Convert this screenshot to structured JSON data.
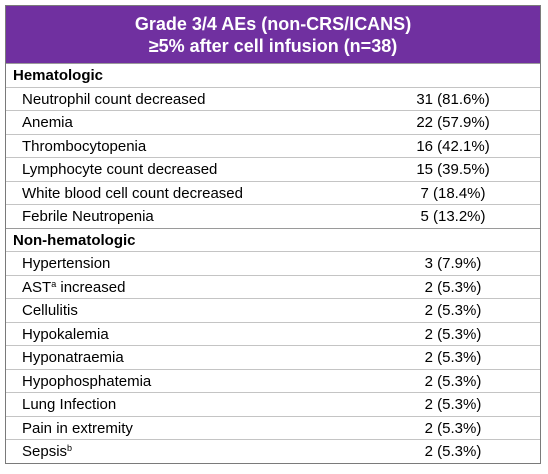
{
  "header": {
    "line1": "Grade 3/4 AEs (non-CRS/ICANS)",
    "line2": "≥5% after cell infusion (n=38)"
  },
  "sections": [
    {
      "title": "Hematologic",
      "rows": [
        {
          "name": "Neutrophil count decreased",
          "sup": "",
          "value": "31 (81.6%)"
        },
        {
          "name": "Anemia",
          "sup": "",
          "value": "22 (57.9%)"
        },
        {
          "name": "Thrombocytopenia",
          "sup": "",
          "value": "16 (42.1%)"
        },
        {
          "name": "Lymphocyte count decreased",
          "sup": "",
          "value": "15 (39.5%)"
        },
        {
          "name": "White blood cell count decreased",
          "sup": "",
          "value": "7 (18.4%)"
        },
        {
          "name": "Febrile Neutropenia",
          "sup": "",
          "value": "5 (13.2%)"
        }
      ]
    },
    {
      "title": "Non-hematologic",
      "rows": [
        {
          "name": "Hypertension",
          "sup": "",
          "value": "3 (7.9%)"
        },
        {
          "name": "AST",
          "sup": "a",
          "suffix": " increased",
          "value": "2 (5.3%)"
        },
        {
          "name": "Cellulitis",
          "sup": "",
          "value": "2 (5.3%)"
        },
        {
          "name": "Hypokalemia",
          "sup": "",
          "value": "2 (5.3%)"
        },
        {
          "name": "Hyponatraemia",
          "sup": "",
          "value": "2 (5.3%)"
        },
        {
          "name": "Hypophosphatemia",
          "sup": "",
          "value": "2 (5.3%)"
        },
        {
          "name": "Lung Infection",
          "sup": "",
          "value": "2 (5.3%)"
        },
        {
          "name": "Pain in extremity",
          "sup": "",
          "value": "2 (5.3%)"
        },
        {
          "name": "Sepsis",
          "sup": "b",
          "value": "2 (5.3%)"
        }
      ]
    }
  ]
}
